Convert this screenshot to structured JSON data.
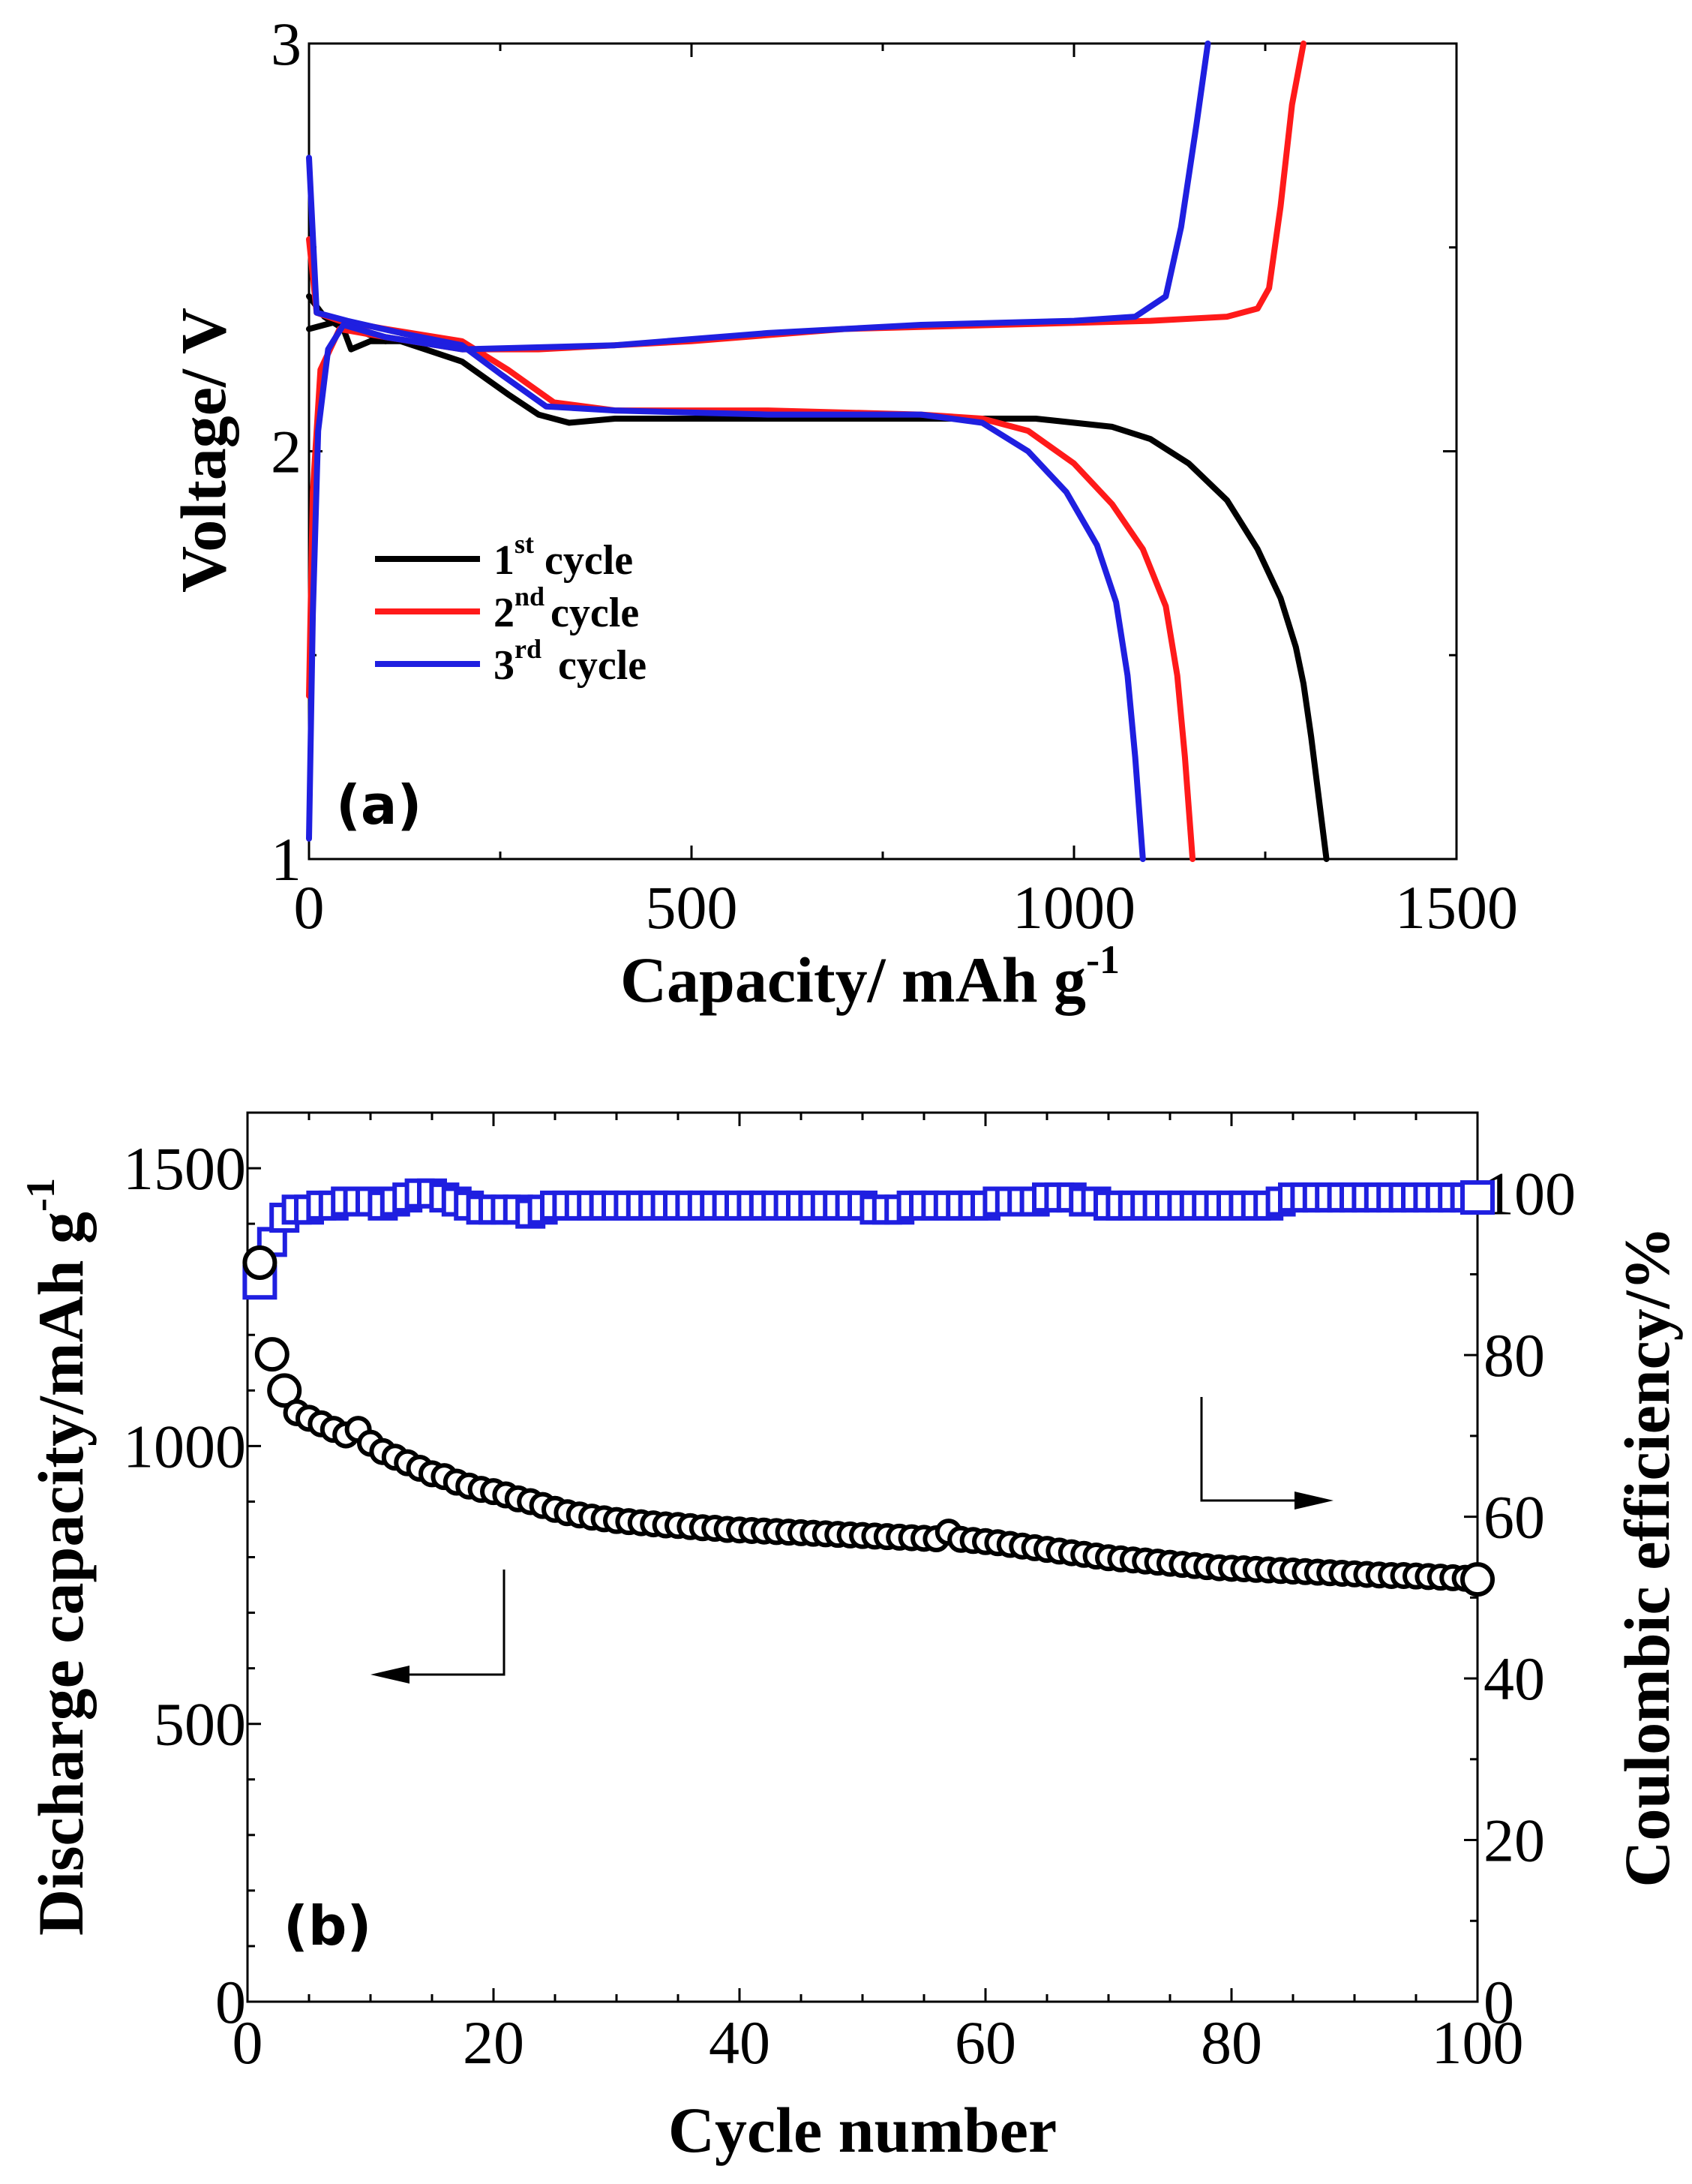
{
  "chart_data": [
    {
      "panel": "(a)",
      "type": "line",
      "xlabel": "Capacity/ mAh g",
      "xlabel_sup": "-1",
      "ylabel": "Voltage/ V",
      "xlim": [
        0,
        1500
      ],
      "ylim": [
        1,
        3
      ],
      "xticks": [
        0,
        500,
        1000,
        1500
      ],
      "yticks": [
        1,
        2,
        3
      ],
      "legend_position": "center-left",
      "series": [
        {
          "name": "1st cycle",
          "legend_main": "1",
          "legend_sup": "st",
          "legend_tail": "cycle",
          "color": "#000000",
          "discharge": [
            [
              0,
              2.38
            ],
            [
              20,
              2.33
            ],
            [
              45,
              2.3
            ],
            [
              55,
              2.25
            ],
            [
              80,
              2.27
            ],
            [
              120,
              2.27
            ],
            [
              200,
              2.22
            ],
            [
              260,
              2.14
            ],
            [
              300,
              2.09
            ],
            [
              340,
              2.07
            ],
            [
              400,
              2.08
            ],
            [
              600,
              2.08
            ],
            [
              800,
              2.08
            ],
            [
              950,
              2.08
            ],
            [
              1050,
              2.06
            ],
            [
              1100,
              2.03
            ],
            [
              1150,
              1.97
            ],
            [
              1200,
              1.88
            ],
            [
              1240,
              1.76
            ],
            [
              1270,
              1.64
            ],
            [
              1290,
              1.52
            ],
            [
              1300,
              1.43
            ],
            [
              1310,
              1.3
            ],
            [
              1320,
              1.15
            ],
            [
              1330,
              1.0
            ]
          ],
          "charge": [
            [
              0,
              2.3
            ],
            [
              40,
              2.32
            ],
            [
              60,
              2.3
            ],
            [
              100,
              2.27
            ]
          ]
        },
        {
          "name": "2nd cycle",
          "legend_main": "2",
          "legend_sup": "nd",
          "legend_tail": "cycle",
          "color": "#ff1a1a",
          "discharge": [
            [
              0,
              2.52
            ],
            [
              10,
              2.34
            ],
            [
              40,
              2.32
            ],
            [
              100,
              2.3
            ],
            [
              200,
              2.27
            ],
            [
              260,
              2.2
            ],
            [
              320,
              2.12
            ],
            [
              400,
              2.1
            ],
            [
              600,
              2.1
            ],
            [
              800,
              2.09
            ],
            [
              880,
              2.08
            ],
            [
              940,
              2.05
            ],
            [
              1000,
              1.97
            ],
            [
              1050,
              1.87
            ],
            [
              1090,
              1.76
            ],
            [
              1120,
              1.62
            ],
            [
              1135,
              1.45
            ],
            [
              1145,
              1.25
            ],
            [
              1155,
              1.0
            ]
          ],
          "charge": [
            [
              0,
              1.4
            ],
            [
              5,
              1.9
            ],
            [
              15,
              2.2
            ],
            [
              40,
              2.3
            ],
            [
              100,
              2.28
            ],
            [
              200,
              2.25
            ],
            [
              300,
              2.25
            ],
            [
              500,
              2.27
            ],
            [
              700,
              2.3
            ],
            [
              900,
              2.31
            ],
            [
              1100,
              2.32
            ],
            [
              1200,
              2.33
            ],
            [
              1240,
              2.35
            ],
            [
              1255,
              2.4
            ],
            [
              1270,
              2.6
            ],
            [
              1285,
              2.85
            ],
            [
              1300,
              3.0
            ]
          ]
        },
        {
          "name": "3rd cycle",
          "legend_main": "3",
          "legend_sup": "rd",
          "legend_tail": "cycle",
          "color": "#1f1fe0",
          "discharge": [
            [
              0,
              2.72
            ],
            [
              10,
              2.34
            ],
            [
              50,
              2.32
            ],
            [
              120,
              2.29
            ],
            [
              200,
              2.26
            ],
            [
              250,
              2.19
            ],
            [
              310,
              2.11
            ],
            [
              400,
              2.1
            ],
            [
              600,
              2.09
            ],
            [
              800,
              2.09
            ],
            [
              880,
              2.07
            ],
            [
              940,
              2.0
            ],
            [
              990,
              1.9
            ],
            [
              1030,
              1.77
            ],
            [
              1055,
              1.63
            ],
            [
              1070,
              1.45
            ],
            [
              1080,
              1.25
            ],
            [
              1090,
              1.0
            ]
          ],
          "charge": [
            [
              0,
              1.05
            ],
            [
              5,
              1.6
            ],
            [
              12,
              2.05
            ],
            [
              25,
              2.25
            ],
            [
              45,
              2.31
            ],
            [
              100,
              2.28
            ],
            [
              200,
              2.25
            ],
            [
              400,
              2.26
            ],
            [
              600,
              2.29
            ],
            [
              800,
              2.31
            ],
            [
              1000,
              2.32
            ],
            [
              1080,
              2.33
            ],
            [
              1120,
              2.38
            ],
            [
              1140,
              2.55
            ],
            [
              1160,
              2.8
            ],
            [
              1175,
              3.0
            ]
          ]
        }
      ]
    },
    {
      "panel": "(b)",
      "type": "scatter",
      "xlabel": "Cycle number",
      "ylabel_left": "Discharge capacity/mAh g",
      "ylabel_left_sup": "-1",
      "ylabel_right": "Coulombic efficiency/%",
      "xlim": [
        0,
        100
      ],
      "ylim_left": [
        0,
        1600
      ],
      "ylim_right": [
        0,
        110
      ],
      "xticks": [
        0,
        20,
        40,
        60,
        80,
        100
      ],
      "yticks_left": [
        0,
        500,
        1000,
        1500
      ],
      "yticks_right": [
        0,
        20,
        40,
        60,
        80,
        100
      ],
      "series": [
        {
          "name": "Discharge capacity",
          "axis": "left",
          "marker": "open-circle",
          "color": "#000000",
          "x": [
            1,
            2,
            3,
            4,
            5,
            6,
            7,
            8,
            9,
            10,
            11,
            12,
            13,
            14,
            15,
            16,
            17,
            18,
            19,
            20,
            21,
            22,
            23,
            24,
            25,
            26,
            27,
            28,
            29,
            30,
            31,
            32,
            33,
            34,
            35,
            36,
            37,
            38,
            39,
            40,
            41,
            42,
            43,
            44,
            45,
            46,
            47,
            48,
            49,
            50,
            51,
            52,
            53,
            54,
            55,
            56,
            57,
            58,
            59,
            60,
            61,
            62,
            63,
            64,
            65,
            66,
            67,
            68,
            69,
            70,
            71,
            72,
            73,
            74,
            75,
            76,
            77,
            78,
            79,
            80,
            81,
            82,
            83,
            84,
            85,
            86,
            87,
            88,
            89,
            90,
            91,
            92,
            93,
            94,
            95,
            96,
            97,
            98,
            99,
            100
          ],
          "y": [
            1330,
            1165,
            1100,
            1060,
            1050,
            1040,
            1030,
            1020,
            1030,
            1005,
            990,
            980,
            970,
            960,
            950,
            945,
            935,
            928,
            922,
            918,
            912,
            905,
            900,
            893,
            886,
            880,
            876,
            872,
            869,
            866,
            864,
            862,
            860,
            858,
            857,
            855,
            853,
            852,
            850,
            849,
            848,
            847,
            846,
            845,
            844,
            843,
            842,
            841,
            840,
            839,
            838,
            837,
            836,
            835,
            834,
            833,
            845,
            832,
            830,
            828,
            826,
            823,
            820,
            817,
            814,
            811,
            808,
            805,
            802,
            799,
            797,
            795,
            793,
            791,
            789,
            787,
            785,
            783,
            781,
            780,
            779,
            778,
            777,
            776,
            775,
            774,
            773,
            772,
            771,
            770,
            769,
            768,
            767,
            767,
            766,
            765,
            764,
            763,
            762,
            760
          ]
        },
        {
          "name": "Coulombic efficiency",
          "axis": "right",
          "marker": "open-square",
          "color": "#1f1fe0",
          "x": [
            1,
            2,
            3,
            4,
            5,
            6,
            7,
            8,
            9,
            10,
            11,
            12,
            13,
            14,
            15,
            16,
            17,
            18,
            19,
            20,
            21,
            22,
            23,
            24,
            25,
            26,
            27,
            28,
            29,
            30,
            31,
            32,
            33,
            34,
            35,
            36,
            37,
            38,
            39,
            40,
            41,
            42,
            43,
            44,
            45,
            46,
            47,
            48,
            49,
            50,
            51,
            52,
            53,
            54,
            55,
            56,
            57,
            58,
            59,
            60,
            61,
            62,
            63,
            64,
            65,
            66,
            67,
            68,
            69,
            70,
            71,
            72,
            73,
            74,
            75,
            76,
            77,
            78,
            79,
            80,
            81,
            82,
            83,
            84,
            85,
            86,
            87,
            88,
            89,
            90,
            91,
            92,
            93,
            94,
            95,
            96,
            97,
            98,
            99,
            100
          ],
          "y": [
            89,
            94,
            97,
            98,
            98,
            98.5,
            98.5,
            99,
            99,
            99,
            98.5,
            99,
            99.5,
            100,
            100,
            99.5,
            99,
            98.5,
            98,
            98,
            98,
            98,
            97.5,
            98,
            98.5,
            98.5,
            98.5,
            98.5,
            98.5,
            98.5,
            98.5,
            98.5,
            98.5,
            98.5,
            98.5,
            98.5,
            98.5,
            98.5,
            98.5,
            98.5,
            98.5,
            98.5,
            98.5,
            98.5,
            98.5,
            98.5,
            98.5,
            98.5,
            98.5,
            98.5,
            98,
            98,
            98,
            98.5,
            98.5,
            98.5,
            98.5,
            98.5,
            98.5,
            98.5,
            99,
            99,
            99,
            99,
            99.5,
            99.5,
            99.5,
            99,
            99,
            98.5,
            98.5,
            98.5,
            98.5,
            98.5,
            98.5,
            98.5,
            98.5,
            98.5,
            98.5,
            98.5,
            98.5,
            98.5,
            98.5,
            99,
            99.5,
            99.5,
            99.5,
            99.5,
            99.5,
            99.5,
            99.5,
            99.5,
            99.5,
            99.5,
            99.5,
            99.5,
            99.5,
            99.5,
            99.5,
            99.5
          ]
        }
      ],
      "annotations": [
        {
          "kind": "arrow",
          "points_to": "left axis",
          "label": ""
        },
        {
          "kind": "arrow",
          "points_to": "right axis",
          "label": ""
        }
      ]
    }
  ]
}
